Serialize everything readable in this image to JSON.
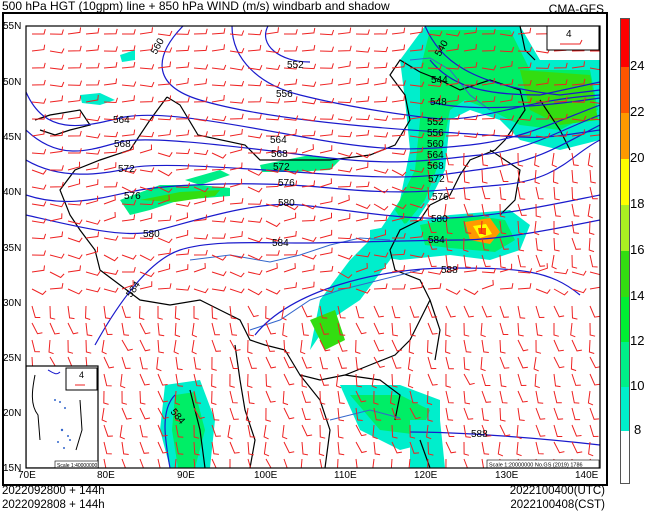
{
  "header": {
    "title": "500 hPa HGT (10gpm) line + 850 hPa WIND (m/s) windbarb and shadow",
    "model": "CMA-GFS"
  },
  "map": {
    "lat_labels": [
      "55N",
      "50N",
      "45N",
      "40N",
      "35N",
      "30N",
      "25N",
      "20N",
      "15N"
    ],
    "lon_labels": [
      "70E",
      "80E",
      "90E",
      "100E",
      "110E",
      "120E",
      "130E",
      "140E"
    ],
    "contour_labels": {
      "west_560": "560",
      "n_556": "556",
      "n_552": "552",
      "w_564": "564",
      "c_564": "564",
      "w_568": "568",
      "c_568": "568",
      "w_572": "572",
      "c_572": "572",
      "w_576": "576",
      "c_576": "576",
      "w_580": "580",
      "c_580": "580",
      "e_580": "580",
      "w_584": "584",
      "c_584": "584",
      "e_584": "584",
      "s_584": "584",
      "c_588": "588",
      "s_588": "588",
      "ne_540": "540",
      "ne_544": "544",
      "ne_548": "548",
      "ne_552": "552",
      "ne_556": "556",
      "ne_560": "560",
      "ne_564": "564",
      "ne_568": "568",
      "ne_572": "572",
      "ne_576": "576"
    },
    "reference_barb_value": "4",
    "inset_reference_barb_value": "4",
    "main_scale": "Scale 1:20000000 No.GS (2019) 1786",
    "inset_scale": "Scale 1:40000000",
    "colors": {
      "contour": "#1a1acc",
      "windbarb": "#ee2222",
      "border": "#000000",
      "river": "#3366cc"
    }
  },
  "colorbar": {
    "unit": "m/s",
    "ticks": [
      "24",
      "22",
      "20",
      "18",
      "16",
      "14",
      "12",
      "10",
      "8"
    ],
    "colors": [
      "#ff0000",
      "#ff5500",
      "#ff9900",
      "#ffff00",
      "#aaee22",
      "#33dd11",
      "#00ee33",
      "#00ee88",
      "#00eecc",
      "#ffffff"
    ]
  },
  "footer": {
    "init_utc": "2022092800 + 144h",
    "init_cst": "2022092808 + 144h",
    "valid_utc": "2022100400(UTC)",
    "valid_cst": "2022100408(CST)"
  }
}
